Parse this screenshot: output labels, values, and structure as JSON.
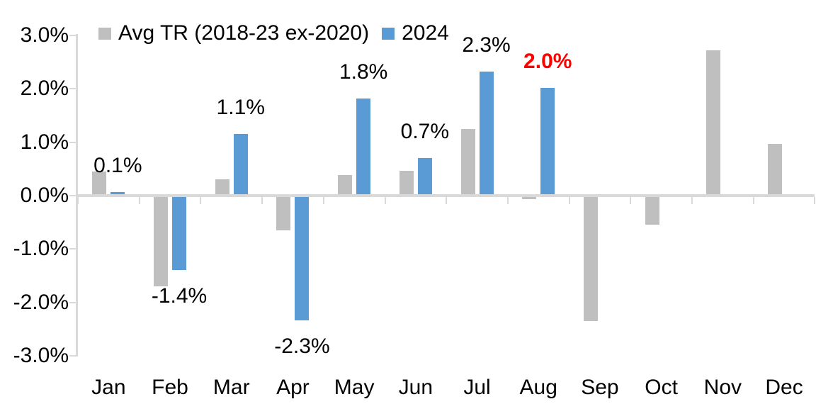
{
  "chart_data": {
    "type": "bar",
    "title": "",
    "xlabel": "",
    "ylabel": "",
    "categories": [
      "Jan",
      "Feb",
      "Mar",
      "Apr",
      "May",
      "Jun",
      "Jul",
      "Aug",
      "Sep",
      "Oct",
      "Nov",
      "Dec"
    ],
    "y_ticks": [
      "3.0%",
      "2.0%",
      "1.0%",
      "0.0%",
      "-1.0%",
      "-2.0%",
      "-3.0%"
    ],
    "y_tick_values": [
      3,
      2,
      1,
      0,
      -1,
      -2,
      -3
    ],
    "ylim": [
      -3,
      3
    ],
    "grid": false,
    "legend_position": "top-left",
    "axis_color": "#d9d9d9",
    "series": [
      {
        "name": "Avg TR (2018-23 ex-2020)",
        "color": "#bfbfbf",
        "values": [
          0.45,
          -1.7,
          0.3,
          -0.65,
          0.38,
          0.46,
          1.25,
          -0.06,
          -2.35,
          -0.55,
          2.72,
          0.97
        ]
      },
      {
        "name": "2024",
        "color": "#5b9bd5",
        "values": [
          0.07,
          -1.4,
          1.15,
          -2.33,
          1.82,
          0.7,
          2.32,
          2.02,
          null,
          null,
          null,
          null
        ],
        "data_labels": [
          "0.1%",
          "-1.4%",
          "1.1%",
          "-2.3%",
          "1.8%",
          "0.7%",
          "2.3%",
          "2.0%",
          null,
          null,
          null,
          null
        ],
        "data_label_colors": [
          "#000000",
          "#000000",
          "#000000",
          "#000000",
          "#000000",
          "#000000",
          "#000000",
          "#ff0000",
          null,
          null,
          null,
          null
        ]
      }
    ]
  }
}
